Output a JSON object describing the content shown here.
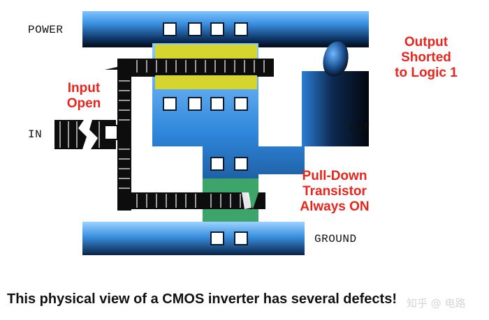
{
  "diagram": {
    "labels": {
      "power": "POWER",
      "in": "IN",
      "out": "OUT",
      "ground": "GROUND"
    },
    "annotations": {
      "input_open_line1": "Input",
      "input_open_line2": "Open",
      "output_shorted_line1": "Output",
      "output_shorted_line2": "Shorted",
      "output_shorted_line3": "to Logic 1",
      "pulldown_line1": "Pull-Down",
      "pulldown_line2": "Transistor",
      "pulldown_line3": "Always ON"
    },
    "caption": "This physical view of a CMOS inverter has several defects!",
    "watermark": "知乎 @ 电路",
    "colors": {
      "metal_light": "#7fc3ff",
      "metal_dark": "#0a1220",
      "poly": "#111111",
      "pmos": "#d6d42e",
      "nmos": "#3da56a",
      "annotation": "#e8251c"
    }
  }
}
